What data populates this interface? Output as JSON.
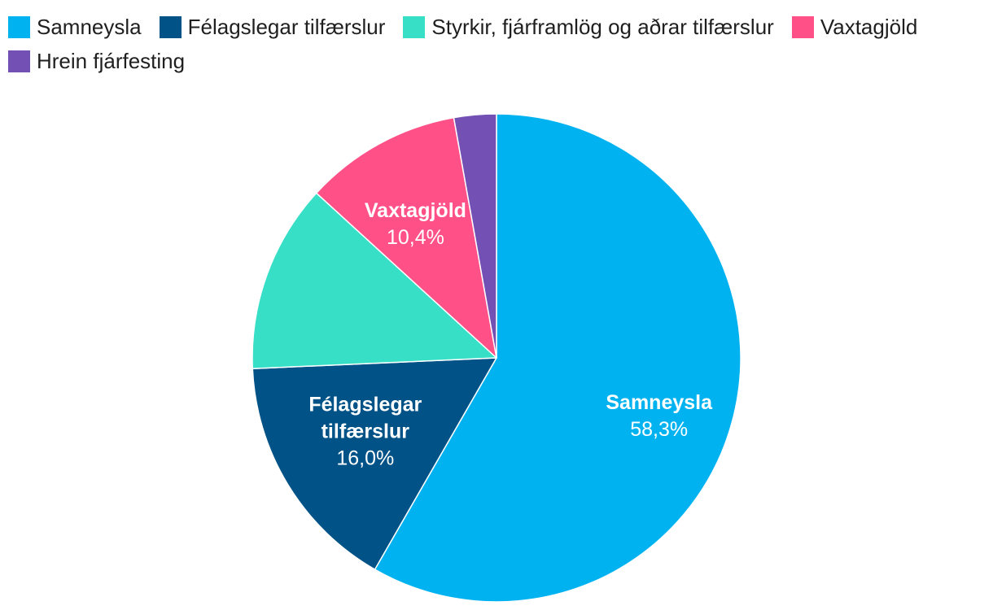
{
  "chart_data": {
    "type": "pie",
    "title": "",
    "legend_position": "top",
    "start": "12 o'clock",
    "direction": "clockwise",
    "slices": [
      {
        "name": "Samneysla",
        "value": 58.3,
        "value_label": "58,3%",
        "color": "#00B3F0",
        "label_lines": [
          "Samneysla"
        ]
      },
      {
        "name": "Félagslegar tilfærslur",
        "value": 16.0,
        "value_label": "16,0%",
        "color": "#005287",
        "label_lines": [
          "Félagslegar",
          "tilfærslur"
        ]
      },
      {
        "name": "Styrkir, fjárframlög og aðrar tilfærslur",
        "value": 12.5,
        "value_label": "",
        "color": "#36DFC6",
        "label_lines": []
      },
      {
        "name": "Vaxtagjöld",
        "value": 10.4,
        "value_label": "10,4%",
        "color": "#FF5088",
        "label_lines": [
          "Vaxtagjöld"
        ]
      },
      {
        "name": "Hrein fjárfesting",
        "value": 2.8,
        "value_label": "",
        "color": "#7350B4",
        "label_lines": []
      }
    ]
  }
}
